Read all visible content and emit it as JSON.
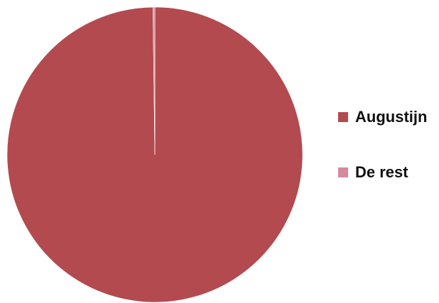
{
  "chart_data": {
    "type": "pie",
    "categories": [
      "Augustijn",
      "De rest"
    ],
    "values": [
      99.8,
      0.2
    ],
    "colors": [
      "#b34a4f",
      "#d48a9b"
    ],
    "legend": "right",
    "title": ""
  }
}
